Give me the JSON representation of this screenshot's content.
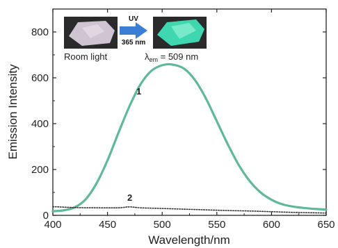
{
  "chart_data": {
    "type": "line",
    "title": "",
    "xlabel": "Wavelength/nm",
    "ylabel": "Emission Intensity",
    "xlim": [
      400,
      650
    ],
    "ylim": [
      0,
      900
    ],
    "xticks": [
      400,
      450,
      500,
      550,
      600,
      650
    ],
    "yticks": [
      0,
      200,
      400,
      600,
      800
    ],
    "xtick_labels": [
      "400",
      "450",
      "500",
      "550",
      "600",
      "650"
    ],
    "ytick_labels": [
      "0",
      "200",
      "400",
      "600",
      "800"
    ],
    "grid": false,
    "series": [
      {
        "name": "1",
        "color": "#5fb89a",
        "style": "solid",
        "x": [
          400,
          410,
          420,
          430,
          440,
          450,
          460,
          470,
          480,
          490,
          500,
          509,
          520,
          530,
          540,
          550,
          560,
          570,
          580,
          590,
          600,
          610,
          620,
          630,
          640,
          650
        ],
        "y": [
          18,
          22,
          35,
          70,
          140,
          240,
          360,
          475,
          570,
          630,
          655,
          658,
          640,
          590,
          510,
          410,
          310,
          220,
          150,
          100,
          68,
          48,
          38,
          32,
          28,
          25
        ]
      },
      {
        "name": "2",
        "color": "#333333",
        "style": "dotted",
        "x": [
          400,
          420,
          440,
          460,
          470,
          480,
          500,
          520,
          540,
          560,
          580,
          600,
          620,
          640,
          650
        ],
        "y": [
          38,
          34,
          33,
          33,
          37,
          33,
          30,
          27,
          24,
          21,
          19,
          16,
          13,
          11,
          10
        ]
      }
    ],
    "annotations": {
      "room_light": "Room light",
      "uv": "UV",
      "uv_wavelength": "365 nm",
      "lambda_symbol": "λ",
      "lambda_subscript": "em",
      "lambda_value": " = 509 nm"
    },
    "colors": {
      "arrow": "#3a7fd5",
      "crystal_room_light": "#cfc4d2",
      "crystal_uv": "#3fd7b0",
      "photo_background": "#2a2a2a"
    }
  }
}
